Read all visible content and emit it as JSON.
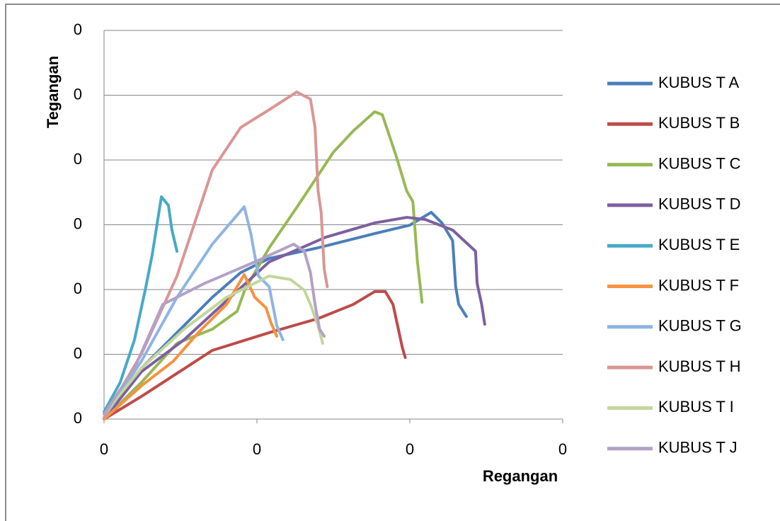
{
  "chart_data": {
    "type": "line",
    "x_label": "Regangan",
    "y_label": "Tegangan",
    "xlim": [
      0,
      0.003
    ],
    "xticks": [
      0,
      {
        "value": 0.001,
        "label": "0"
      },
      {
        "value": 0.002,
        "label": "0"
      },
      {
        "value": 0.003,
        "label": "0"
      }
    ],
    "ylim": [
      0,
      0.3
    ],
    "yticks": [
      0,
      {
        "value": 0.05,
        "label": "0"
      },
      {
        "value": 0.1,
        "label": "0"
      },
      {
        "value": 0.15,
        "label": "0"
      },
      {
        "value": 0.2,
        "label": "0"
      },
      {
        "value": 0.25,
        "label": "0"
      },
      {
        "value": 0.3,
        "label": "0"
      }
    ],
    "grid": true,
    "legend": "right",
    "series": [
      {
        "name": "KUBUS T A",
        "color": "#4a7ebb",
        "x": [
          0,
          0.000245,
          0.000477,
          0.000708,
          0.000894,
          0.00108,
          0.0014,
          0.00177,
          0.002,
          0.00214,
          0.00221,
          0.00228,
          0.0023,
          0.00232,
          0.00237
        ],
        "values": [
          0,
          0.0393,
          0.0667,
          0.094,
          0.1131,
          0.124,
          0.1322,
          0.1432,
          0.1497,
          0.1596,
          0.1514,
          0.1377,
          0.1022,
          0.0885,
          0.0792
        ]
      },
      {
        "name": "KUBUS T B",
        "color": "#be4b48",
        "x": [
          0,
          0.000245,
          0.000708,
          0.00108,
          0.0014,
          0.00163,
          0.00177,
          0.00184,
          0.00189,
          0.00193,
          0.00195,
          0.00197
        ],
        "values": [
          0,
          0.0175,
          0.053,
          0.0667,
          0.0776,
          0.0885,
          0.0984,
          0.0984,
          0.0885,
          0.0667,
          0.0557,
          0.0475
        ]
      },
      {
        "name": "KUBUS T C",
        "color": "#98b954",
        "x": [
          0,
          0.000245,
          0.000477,
          0.000708,
          0.00087,
          0.00092,
          0.00108,
          0.00127,
          0.0015,
          0.00163,
          0.00177,
          0.00182,
          0.00191,
          0.00198,
          0.00202,
          0.00205,
          0.00208
        ],
        "values": [
          0,
          0.0284,
          0.0585,
          0.0694,
          0.0831,
          0.0995,
          0.1322,
          0.165,
          0.206,
          0.2224,
          0.2372,
          0.235,
          0.2033,
          0.176,
          0.1678,
          0.1213,
          0.0902
        ]
      },
      {
        "name": "KUBUS T D",
        "color": "#7d5fa0",
        "x": [
          0,
          0.000245,
          0.000523,
          0.000801,
          0.00108,
          0.00145,
          0.00177,
          0.00198,
          0.0021,
          0.00228,
          0.00243,
          0.00244,
          0.00247,
          0.00249
        ],
        "values": [
          0,
          0.0366,
          0.0612,
          0.0913,
          0.1213,
          0.1404,
          0.1514,
          0.1557,
          0.1541,
          0.1459,
          0.1295,
          0.1049,
          0.0885,
          0.0732
        ]
      },
      {
        "name": "KUBUS T E",
        "color": "#46aac5",
        "x": [
          0,
          0.000106,
          0.000199,
          0.000269,
          0.000315,
          0.000375,
          0.000421,
          0.000444,
          0.000477
        ],
        "values": [
          0.0055,
          0.0284,
          0.0612,
          0.0995,
          0.1268,
          0.1716,
          0.165,
          0.1459,
          0.1295
        ]
      },
      {
        "name": "KUBUS T F",
        "color": "#f69240",
        "x": [
          0,
          0.000245,
          0.000454,
          0.000616,
          0.000801,
          0.000917,
          0.000986,
          0.00106,
          0.00109,
          0.00113
        ],
        "values": [
          0,
          0.0257,
          0.0448,
          0.0667,
          0.0885,
          0.1115,
          0.094,
          0.0858,
          0.0749,
          0.0639
        ]
      },
      {
        "name": "KUBUS T G",
        "color": "#8eb4e3",
        "x": [
          0,
          0.000245,
          0.000477,
          0.000708,
          0.000917,
          0.00096,
          0.00101,
          0.00108,
          0.00113,
          0.00117
        ],
        "values": [
          0.0011,
          0.0448,
          0.094,
          0.135,
          0.1639,
          0.1432,
          0.1104,
          0.1022,
          0.0721,
          0.0612
        ]
      },
      {
        "name": "KUBUS T H",
        "color": "#d99694",
        "x": [
          0,
          0.000245,
          0.000477,
          0.000708,
          0.000894,
          0.00108,
          0.00126,
          0.00135,
          0.00138,
          0.0014,
          0.00142,
          0.00144,
          0.00146
        ],
        "values": [
          0.0011,
          0.0503,
          0.1104,
          0.1923,
          0.2251,
          0.2388,
          0.2525,
          0.247,
          0.2251,
          0.176,
          0.1596,
          0.1158,
          0.1022
        ]
      },
      {
        "name": "KUBUS T I",
        "color": "#c3d69b",
        "x": [
          0,
          0.000245,
          0.000523,
          0.000801,
          0.00108,
          0.00122,
          0.00131,
          0.00135,
          0.0014,
          0.00143
        ],
        "values": [
          0.0038,
          0.0393,
          0.0694,
          0.094,
          0.1104,
          0.1077,
          0.0995,
          0.0885,
          0.0721,
          0.0585
        ]
      },
      {
        "name": "KUBUS T J",
        "color": "#b2a1c7",
        "x": [
          0,
          0.000199,
          0.000384,
          0.00066,
          0.000986,
          0.00124,
          0.00131,
          0.00135,
          0.00138,
          0.00141,
          0.00144
        ],
        "values": [
          0.0038,
          0.0393,
          0.0885,
          0.1049,
          0.1213,
          0.135,
          0.1295,
          0.1131,
          0.0885,
          0.0694,
          0.0639
        ]
      }
    ]
  }
}
